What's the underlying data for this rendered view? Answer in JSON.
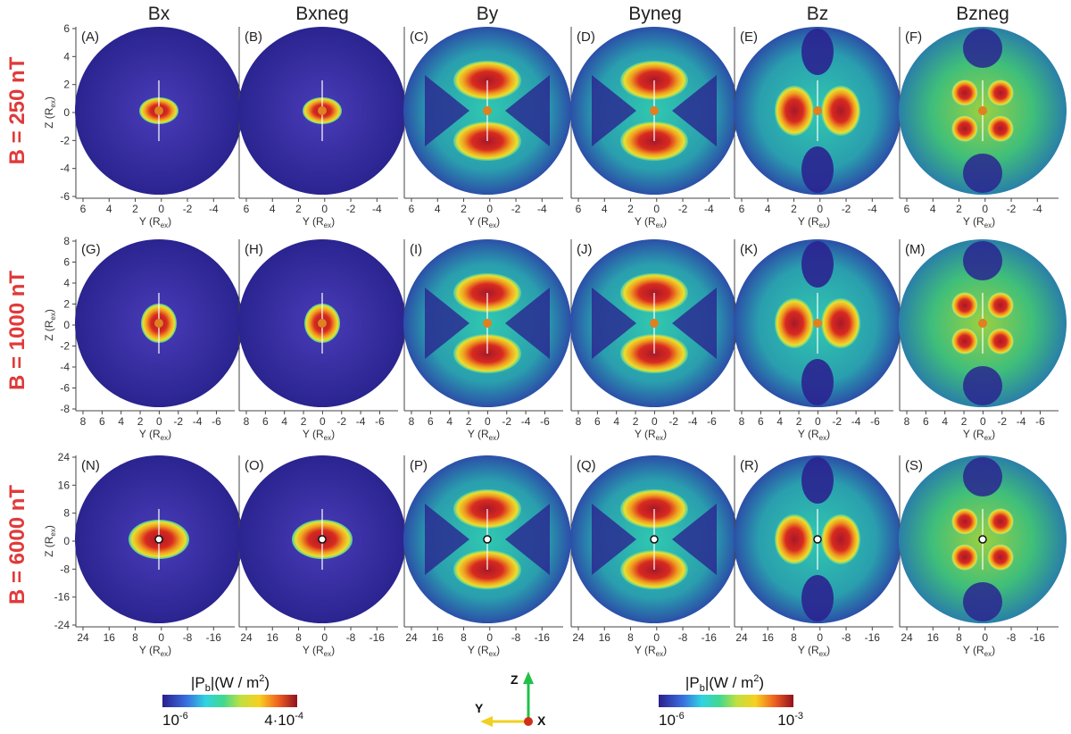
{
  "columns": [
    "Bx",
    "Bxneg",
    "By",
    "Byneg",
    "Bz",
    "Bzneg"
  ],
  "rows": [
    {
      "label": "B = 250 nT",
      "yticks": [
        "6",
        "4",
        "2",
        "0",
        "-2",
        "-4",
        "-6"
      ],
      "xticks": [
        "6",
        "4",
        "2",
        "0",
        "-2",
        "-4"
      ],
      "panels": [
        "(A)",
        "(B)",
        "(C)",
        "(D)",
        "(E)",
        "(F)"
      ]
    },
    {
      "label": "B = 1000 nT",
      "yticks": [
        "8",
        "6",
        "4",
        "2",
        "0",
        "-2",
        "-4",
        "-6",
        "-8"
      ],
      "xticks": [
        "8",
        "6",
        "4",
        "2",
        "0",
        "-2",
        "-4",
        "-6"
      ],
      "panels": [
        "(G)",
        "(H)",
        "(I)",
        "(J)",
        "(K)",
        "(M)"
      ]
    },
    {
      "label": "B = 6000 nT",
      "yticks": [
        "24",
        "16",
        "8",
        "0",
        "-8",
        "-16",
        "-24"
      ],
      "xticks": [
        "24",
        "16",
        "8",
        "0",
        "-8",
        "-16"
      ],
      "panels": [
        "(N)",
        "(O)",
        "(P)",
        "(Q)",
        "(R)",
        "(S)"
      ]
    }
  ],
  "axis": {
    "y_label": "Z (R",
    "x_label": "Y (R",
    "sub": "ex",
    "close": ")"
  },
  "colorbars": [
    {
      "title": "|P",
      "title_sub": "b",
      "title_rest": "|(W / m",
      "title_sup": "2",
      "title_end": ")",
      "min": "10",
      "min_exp": "-6",
      "max": "4·10",
      "max_exp": "-4"
    },
    {
      "title": "|P",
      "title_sub": "b",
      "title_rest": "|(W / m",
      "title_sup": "2",
      "title_end": ")",
      "min": "10",
      "min_exp": "-6",
      "max": "10",
      "max_exp": "-3"
    }
  ],
  "triad": {
    "z": "Z",
    "y": "Y",
    "x": "X"
  },
  "colors": {
    "deep": "#3a2fa0",
    "cyan": "#2fd4c8",
    "green": "#5fd060",
    "yellow": "#f0e030",
    "orange": "#f07a20",
    "red": "#b8152a",
    "label_red": "#e03a3a"
  }
}
